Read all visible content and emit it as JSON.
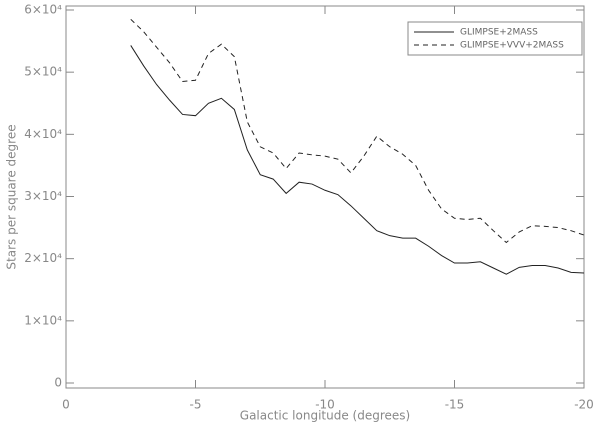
{
  "chart_data": {
    "type": "line",
    "xlabel": "Galactic longitude (degrees)",
    "ylabel": "Stars per square degree",
    "x": [
      -2.5,
      -3,
      -3.5,
      -4,
      -4.5,
      -5,
      -5.5,
      -6,
      -6.5,
      -7,
      -7.5,
      -8,
      -8.5,
      -9,
      -9.5,
      -10,
      -10.5,
      -11,
      -11.5,
      -12,
      -12.5,
      -13,
      -13.5,
      -14,
      -14.5,
      -15,
      -15.5,
      -16,
      -16.5,
      -17,
      -17.5,
      -18,
      -18.5,
      -19,
      -19.5,
      -20
    ],
    "series": [
      {
        "name": "GLIMPSE+2MASS",
        "color": "#222222",
        "linestyle": "solid",
        "values": [
          54300,
          51000,
          48000,
          45500,
          43200,
          43000,
          45000,
          45800,
          44000,
          37500,
          33500,
          32800,
          30500,
          32300,
          32000,
          31000,
          30300,
          28500,
          26500,
          24500,
          23700,
          23300,
          23300,
          22000,
          20500,
          19300,
          19300,
          19500,
          18500,
          17500,
          18600,
          18900,
          18900,
          18500,
          17800,
          17700
        ]
      },
      {
        "name": "GLIMPSE+VVV+2MASS",
        "color": "#222222",
        "linestyle": "dashed",
        "values": [
          58500,
          56500,
          54000,
          51500,
          48500,
          48700,
          53000,
          54500,
          52500,
          42000,
          38000,
          37000,
          34500,
          37000,
          36700,
          36500,
          36000,
          33800,
          36500,
          39700,
          38000,
          36800,
          35000,
          31000,
          28000,
          26500,
          26300,
          26500,
          24500,
          22600,
          24300,
          25300,
          25200,
          25000,
          24500,
          23800
        ]
      }
    ],
    "xlim": [
      0,
      -20
    ],
    "xticks": [
      0,
      -5,
      -10,
      -15,
      -20
    ],
    "ylim": [
      0,
      60000
    ],
    "yticks": [
      0,
      {
        "value": 10000,
        "label": "1×10⁴"
      },
      {
        "value": 20000,
        "label": "2×10⁴"
      },
      {
        "value": 30000,
        "label": "3×10⁴"
      },
      {
        "value": 40000,
        "label": "4×10⁴"
      },
      {
        "value": 50000,
        "label": "5×10⁴"
      },
      {
        "value": 60000,
        "label": "6×10⁴"
      }
    ],
    "legend": "upper right"
  }
}
